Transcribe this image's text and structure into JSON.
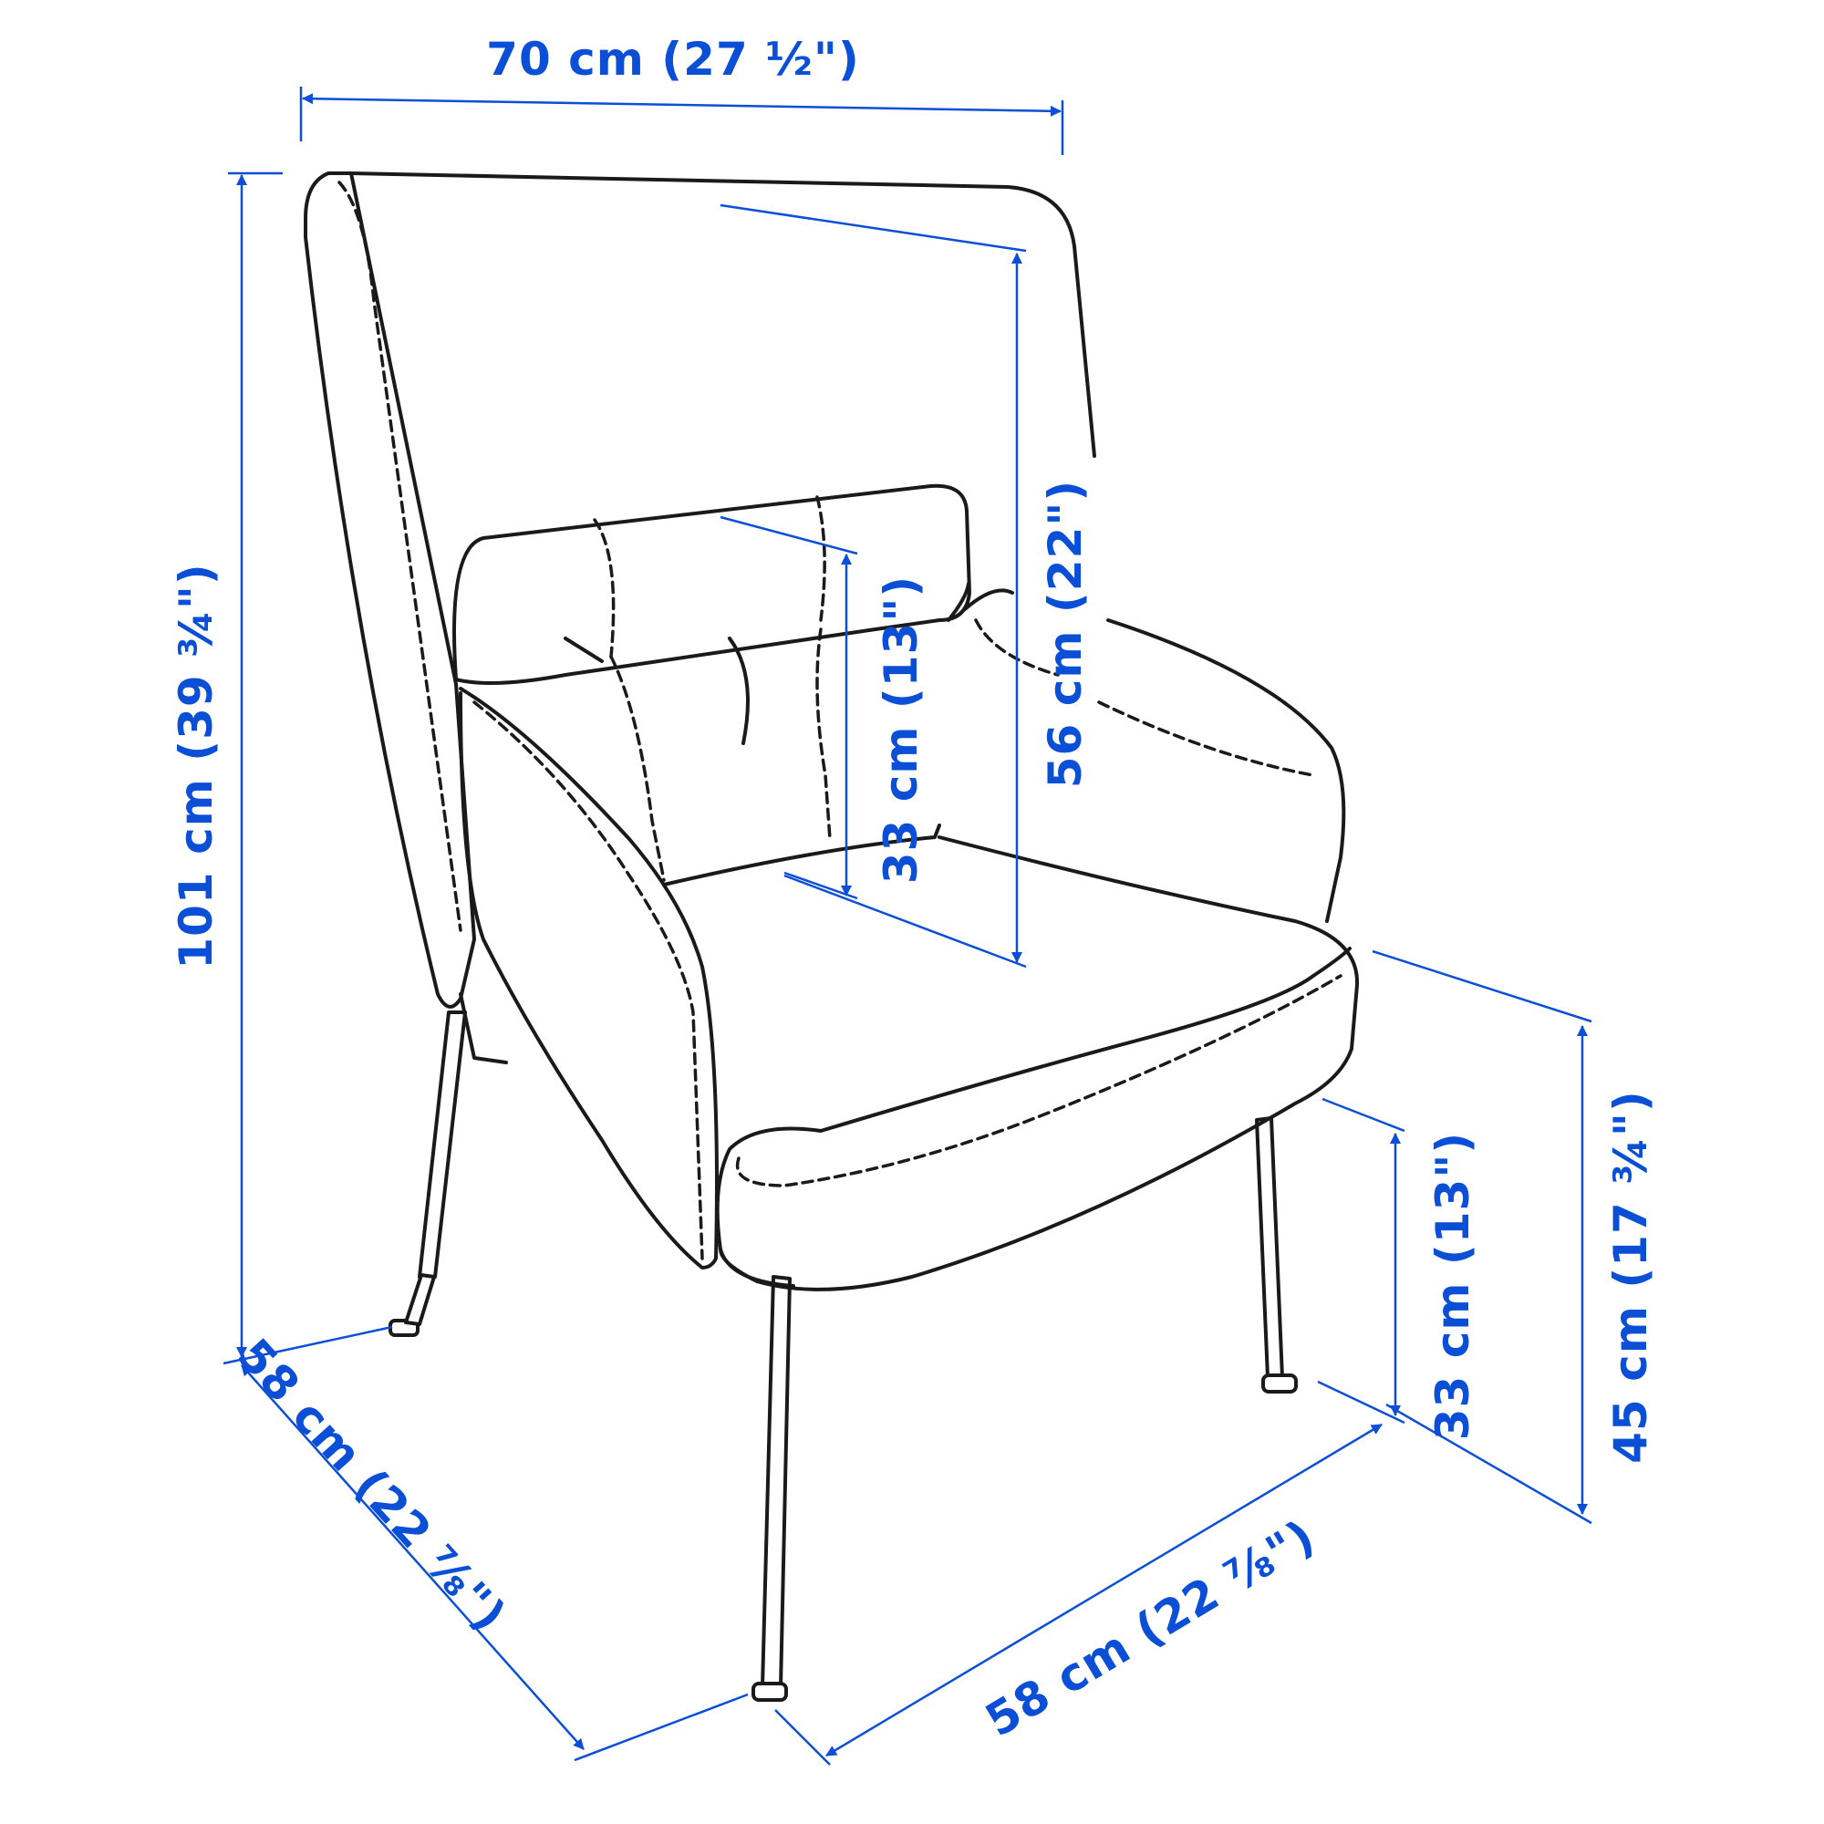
{
  "colors": {
    "dimension": "#0a4fd6",
    "outline": "#1a1a1a",
    "background": "#ffffff"
  },
  "dimensions": {
    "overall_width": "70 cm (27 ½\")",
    "overall_height": "101 cm (39 ¾\")",
    "backrest_height": "56 cm (22\")",
    "headrest_cushion_height": "33 cm (13\")",
    "seat_height": "45 cm (17 ¾\")",
    "leg_height": "33 cm (13\")",
    "depth": "58 cm (22 ⅞\")",
    "width_front": "58 cm (22 ⅞\")"
  }
}
